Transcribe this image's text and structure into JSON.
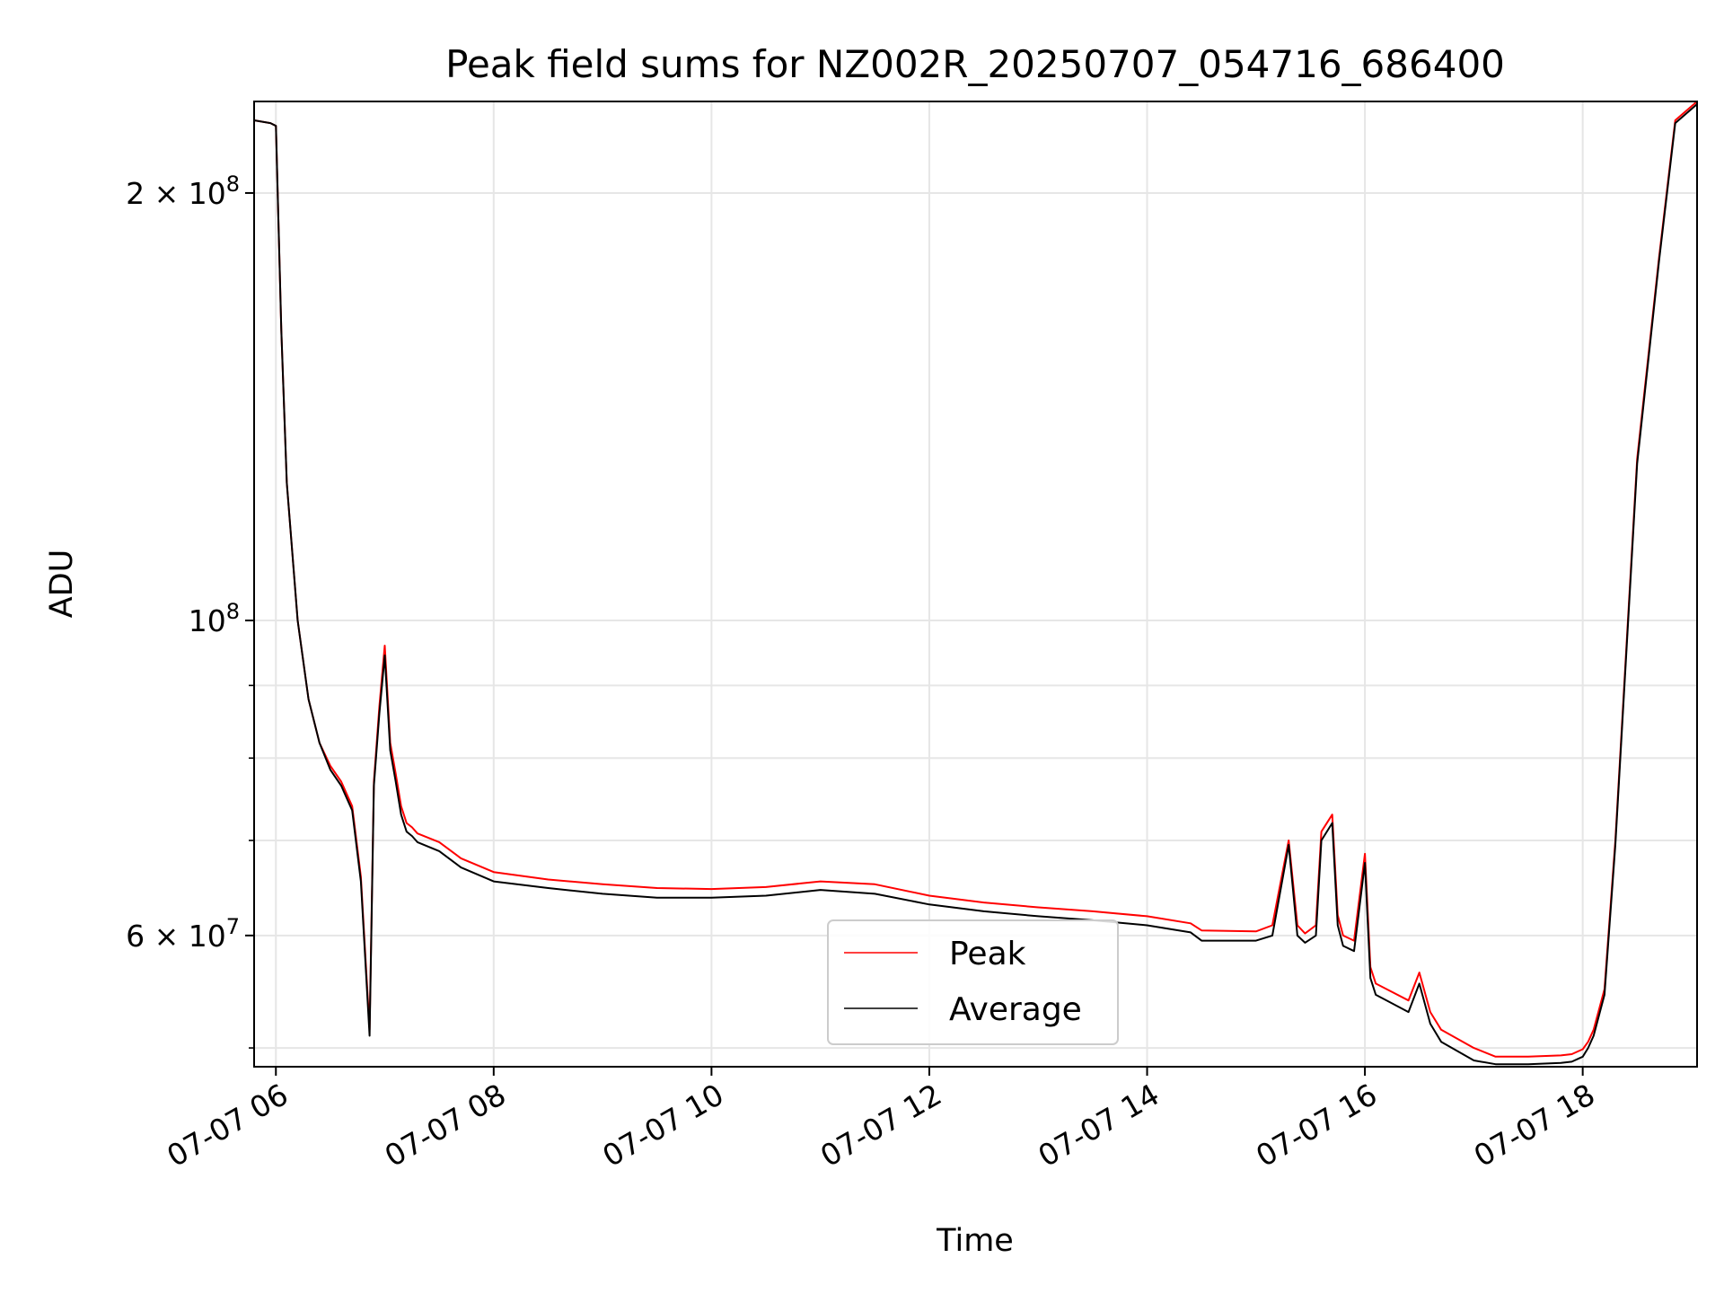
{
  "chart_data": {
    "type": "line",
    "title": "Peak field sums for NZ002R_20250707_054716_686400",
    "xlabel": "Time",
    "ylabel": "ADU",
    "x_unit": "hours of day, 2025-07-07",
    "xlim": [
      5.8,
      19.05
    ],
    "ylim": [
      48500000,
      232000000
    ],
    "yscale": "log",
    "grid": true,
    "legend_position": "lower-center",
    "x_ticks": [
      {
        "value": 6,
        "label": "07-07 06"
      },
      {
        "value": 8,
        "label": "07-07 08"
      },
      {
        "value": 10,
        "label": "07-07 10"
      },
      {
        "value": 12,
        "label": "07-07 12"
      },
      {
        "value": 14,
        "label": "07-07 14"
      },
      {
        "value": 16,
        "label": "07-07 16"
      },
      {
        "value": 18,
        "label": "07-07 18"
      }
    ],
    "y_ticks": [
      {
        "value": 200000000,
        "base": "2 × 10",
        "exp": "8"
      },
      {
        "value": 100000000,
        "base": "10",
        "exp": "8"
      },
      {
        "value": 60000000,
        "base": "6 × 10",
        "exp": "7"
      }
    ],
    "y_minor_ticks": [
      50000000,
      70000000,
      80000000,
      90000000
    ],
    "series": [
      {
        "name": "Peak",
        "color": "#ff0000",
        "x": [
          5.8,
          5.95,
          6.0,
          6.05,
          6.1,
          6.2,
          6.3,
          6.4,
          6.5,
          6.6,
          6.7,
          6.78,
          6.86,
          6.9,
          6.95,
          7.0,
          7.05,
          7.1,
          7.15,
          7.2,
          7.25,
          7.3,
          7.5,
          7.7,
          8.0,
          8.5,
          9.0,
          9.5,
          10.0,
          10.5,
          11.0,
          11.5,
          12.0,
          12.5,
          13.0,
          13.5,
          14.0,
          14.4,
          14.5,
          15.0,
          15.15,
          15.3,
          15.38,
          15.45,
          15.55,
          15.6,
          15.7,
          15.75,
          15.8,
          15.9,
          16.0,
          16.05,
          16.1,
          16.2,
          16.4,
          16.5,
          16.6,
          16.7,
          17.0,
          17.2,
          17.5,
          17.8,
          17.9,
          18.0,
          18.05,
          18.1,
          18.2,
          18.3,
          18.5,
          18.7,
          18.85,
          19.05
        ],
        "y": [
          225000000,
          224000000,
          223000000,
          160000000,
          125000000,
          100000000,
          88000000,
          82000000,
          79000000,
          77000000,
          74000000,
          66000000,
          51500000,
          77000000,
          87000000,
          96000000,
          82000000,
          78000000,
          74000000,
          72000000,
          71500000,
          70800000,
          69800000,
          68000000,
          66500000,
          65700000,
          65200000,
          64800000,
          64700000,
          64900000,
          65500000,
          65200000,
          64000000,
          63300000,
          62800000,
          62400000,
          61900000,
          61200000,
          60500000,
          60400000,
          61000000,
          70000000,
          61000000,
          60200000,
          61000000,
          71000000,
          73000000,
          62000000,
          60000000,
          59500000,
          68500000,
          57000000,
          55500000,
          55000000,
          54000000,
          56500000,
          53000000,
          51500000,
          50000000,
          49300000,
          49300000,
          49400000,
          49500000,
          49900000,
          50500000,
          51500000,
          55000000,
          70000000,
          130000000,
          180000000,
          225000000,
          232000000
        ]
      },
      {
        "name": "Average",
        "color": "#000000",
        "x": [
          5.8,
          5.95,
          6.0,
          6.05,
          6.1,
          6.2,
          6.3,
          6.4,
          6.5,
          6.6,
          6.7,
          6.78,
          6.86,
          6.9,
          6.95,
          7.0,
          7.05,
          7.1,
          7.15,
          7.2,
          7.25,
          7.3,
          7.5,
          7.7,
          8.0,
          8.5,
          9.0,
          9.5,
          10.0,
          10.5,
          11.0,
          11.5,
          12.0,
          12.5,
          13.0,
          13.5,
          14.0,
          14.4,
          14.5,
          15.0,
          15.15,
          15.3,
          15.38,
          15.45,
          15.55,
          15.6,
          15.7,
          15.75,
          15.8,
          15.9,
          16.0,
          16.05,
          16.1,
          16.2,
          16.4,
          16.5,
          16.6,
          16.7,
          17.0,
          17.2,
          17.5,
          17.8,
          17.9,
          18.0,
          18.05,
          18.1,
          18.2,
          18.3,
          18.5,
          18.7,
          18.85,
          19.05
        ],
        "y": [
          225000000,
          224000000,
          223000000,
          160000000,
          125000000,
          100000000,
          88000000,
          82000000,
          78500000,
          76500000,
          73500000,
          65500000,
          51000000,
          76500000,
          86000000,
          94500000,
          81000000,
          77000000,
          73000000,
          71000000,
          70500000,
          69800000,
          68800000,
          67000000,
          65500000,
          64800000,
          64200000,
          63800000,
          63800000,
          64000000,
          64600000,
          64200000,
          63100000,
          62400000,
          61900000,
          61500000,
          61000000,
          60300000,
          59500000,
          59500000,
          60000000,
          69500000,
          60000000,
          59300000,
          60000000,
          70000000,
          72000000,
          61000000,
          59000000,
          58500000,
          67500000,
          56000000,
          54500000,
          54000000,
          53000000,
          55500000,
          52000000,
          50500000,
          49000000,
          48700000,
          48700000,
          48800000,
          48900000,
          49300000,
          50000000,
          51000000,
          54500000,
          69500000,
          129000000,
          179000000,
          224000000,
          231000000
        ]
      }
    ]
  }
}
